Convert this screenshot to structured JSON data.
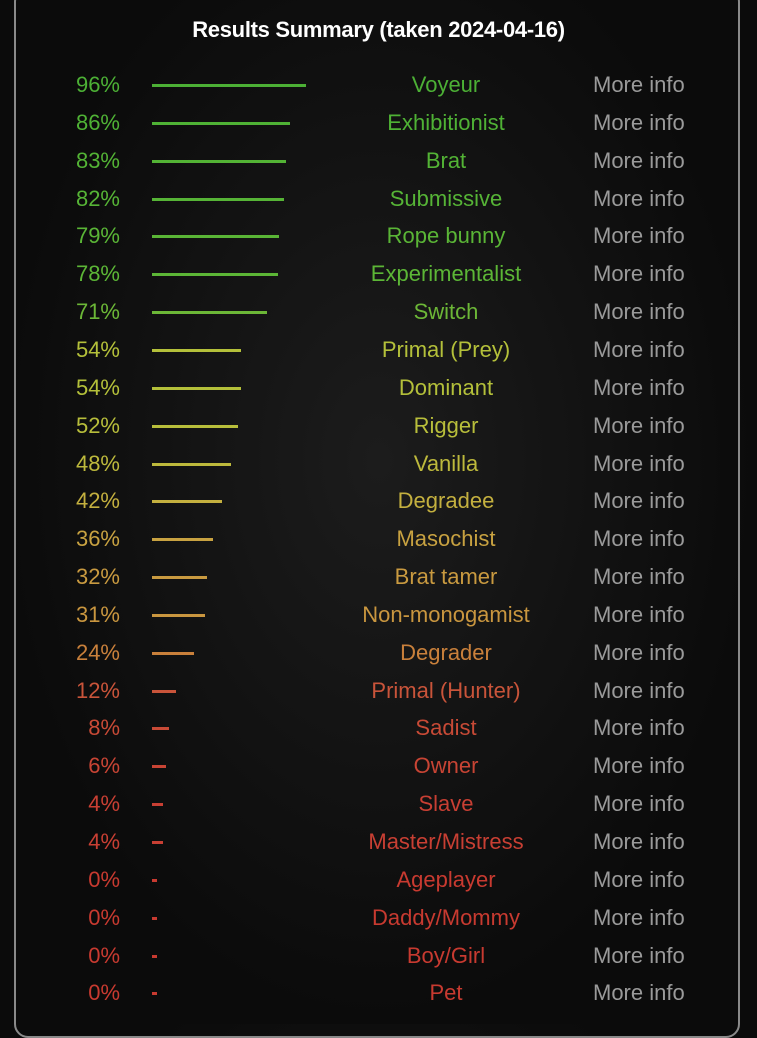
{
  "title": "Results Summary (taken 2024-04-16)",
  "more_info_label": "More info",
  "results": [
    {
      "percent": 96,
      "label": "96%",
      "name": "Voyeur",
      "color": "#4cb035"
    },
    {
      "percent": 86,
      "label": "86%",
      "name": "Exhibitionist",
      "color": "#4fb235"
    },
    {
      "percent": 83,
      "label": "83%",
      "name": "Brat",
      "color": "#53b335"
    },
    {
      "percent": 82,
      "label": "82%",
      "name": "Submissive",
      "color": "#56b436"
    },
    {
      "percent": 79,
      "label": "79%",
      "name": "Rope bunny",
      "color": "#5ab536"
    },
    {
      "percent": 78,
      "label": "78%",
      "name": "Experimentalist",
      "color": "#5cb636"
    },
    {
      "percent": 71,
      "label": "71%",
      "name": "Switch",
      "color": "#6cb737"
    },
    {
      "percent": 54,
      "label": "54%",
      "name": "Primal (Prey)",
      "color": "#b4c03a"
    },
    {
      "percent": 54,
      "label": "54%",
      "name": "Dominant",
      "color": "#b4c03a"
    },
    {
      "percent": 52,
      "label": "52%",
      "name": "Rigger",
      "color": "#b8be3b"
    },
    {
      "percent": 48,
      "label": "48%",
      "name": "Vanilla",
      "color": "#bdb93c"
    },
    {
      "percent": 42,
      "label": "42%",
      "name": "Degradee",
      "color": "#c4b03f"
    },
    {
      "percent": 36,
      "label": "36%",
      "name": "Masochist",
      "color": "#c8a241"
    },
    {
      "percent": 32,
      "label": "32%",
      "name": "Brat tamer",
      "color": "#c99a40"
    },
    {
      "percent": 31,
      "label": "31%",
      "name": "Non-monogamist",
      "color": "#c9963f"
    },
    {
      "percent": 24,
      "label": "24%",
      "name": "Degrader",
      "color": "#c9803b"
    },
    {
      "percent": 12,
      "label": "12%",
      "name": "Primal (Hunter)",
      "color": "#c9543a"
    },
    {
      "percent": 8,
      "label": "8%",
      "name": "Sadist",
      "color": "#c84a36"
    },
    {
      "percent": 6,
      "label": "6%",
      "name": "Owner",
      "color": "#c84434"
    },
    {
      "percent": 4,
      "label": "4%",
      "name": "Slave",
      "color": "#c83f33"
    },
    {
      "percent": 4,
      "label": "4%",
      "name": "Master/Mistress",
      "color": "#c83f33"
    },
    {
      "percent": 0,
      "label": "0%",
      "name": "Ageplayer",
      "color": "#c83a30"
    },
    {
      "percent": 0,
      "label": "0%",
      "name": "Daddy/Mommy",
      "color": "#c83a30"
    },
    {
      "percent": 0,
      "label": "0%",
      "name": "Boy/Girl",
      "color": "#c83a30"
    },
    {
      "percent": 0,
      "label": "0%",
      "name": "Pet",
      "color": "#c83a30"
    }
  ]
}
